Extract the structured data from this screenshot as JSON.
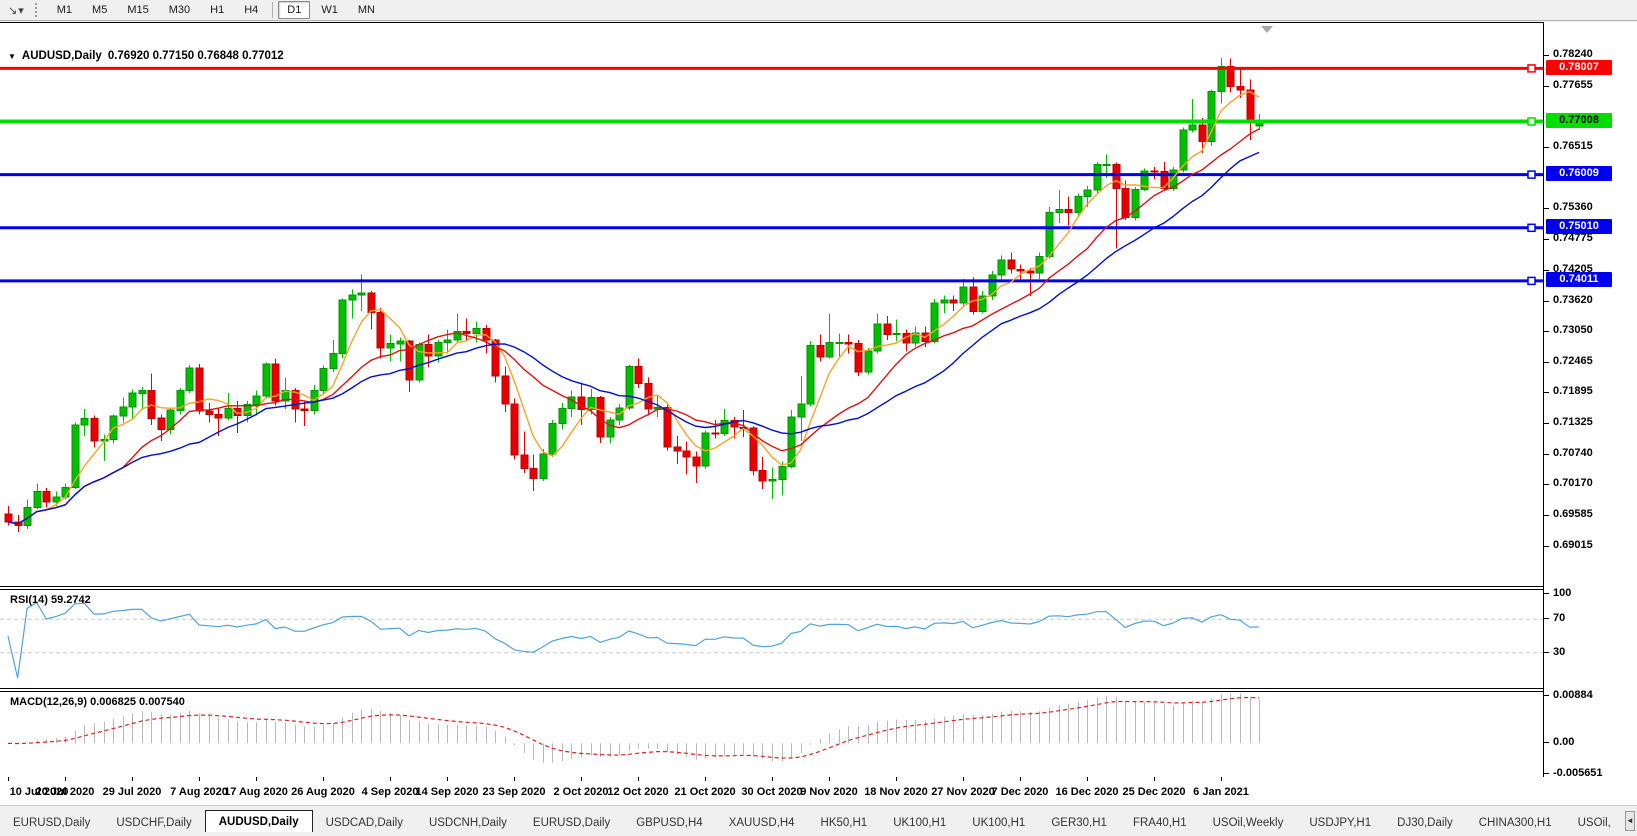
{
  "icons": {
    "toolbar_arrow": "↘",
    "dropdown_caret": "▾",
    "symbol_marker": "▼",
    "shift_marker": "chart-shift-triangle",
    "tab_scroll_left": "◄",
    "tab_scroll_right": "►"
  },
  "toolbar": {
    "timeframes": [
      "M1",
      "M5",
      "M15",
      "M30",
      "H1",
      "H4",
      "D1",
      "W1",
      "MN"
    ],
    "active_timeframe": "D1"
  },
  "title": {
    "symbol": "AUDUSD,Daily",
    "ohlc": "0.76920 0.77150 0.76848 0.77012"
  },
  "tabs": {
    "items": [
      "EURUSD,Daily",
      "USDCHF,Daily",
      "AUDUSD,Daily",
      "USDCAD,Daily",
      "USDCNH,Daily",
      "EURUSD,Daily",
      "GBPUSD,H4",
      "XAUUSD,H4",
      "HK50,H1",
      "UK100,H1",
      "UK100,H1",
      "GER30,H1",
      "FRA40,H1",
      "USOil,Weekly",
      "USDJPY,H1",
      "DJ30,Daily",
      "CHINA300,H1",
      "USOil,"
    ],
    "active_index": 2
  },
  "chart_data": {
    "type": "candlestick",
    "symbol": "AUDUSD",
    "period": "Daily",
    "ohlc_line": {
      "open": 0.7692,
      "high": 0.7715,
      "low": 0.76848,
      "close": 0.77012
    },
    "ylim": [
      0.682756,
      0.7886
    ],
    "y_ticks": [
      "0.78240",
      "0.77655",
      "0.76515",
      "0.75360",
      "0.74775",
      "0.74205",
      "0.73620",
      "0.73050",
      "0.72465",
      "0.71895",
      "0.71325",
      "0.70740",
      "0.70170",
      "0.69585",
      "0.69015"
    ],
    "x_ticks": [
      {
        "label": "10 Jul 2020",
        "bar": 0
      },
      {
        "label": "20 Jul 2020",
        "bar": 6
      },
      {
        "label": "29 Jul 2020",
        "bar": 13
      },
      {
        "label": "7 Aug 2020",
        "bar": 20
      },
      {
        "label": "17 Aug 2020",
        "bar": 26
      },
      {
        "label": "26 Aug 2020",
        "bar": 33
      },
      {
        "label": "4 Sep 2020",
        "bar": 40
      },
      {
        "label": "14 Sep 2020",
        "bar": 46
      },
      {
        "label": "23 Sep 2020",
        "bar": 53
      },
      {
        "label": "2 Oct 2020",
        "bar": 60
      },
      {
        "label": "12 Oct 2020",
        "bar": 66
      },
      {
        "label": "21 Oct 2020",
        "bar": 73
      },
      {
        "label": "30 Oct 2020",
        "bar": 80
      },
      {
        "label": "9 Nov 2020",
        "bar": 86
      },
      {
        "label": "18 Nov 2020",
        "bar": 93
      },
      {
        "label": "27 Nov 2020",
        "bar": 100
      },
      {
        "label": "7 Dec 2020",
        "bar": 106
      },
      {
        "label": "16 Dec 2020",
        "bar": 113
      },
      {
        "label": "25 Dec 2020",
        "bar": 120
      },
      {
        "label": "6 Jan 2021",
        "bar": 127
      }
    ],
    "hlines": [
      {
        "price": 0.78007,
        "label": "0.78007",
        "color": "#FF0000",
        "text_color": "#FFFFFF",
        "width": 3
      },
      {
        "price": 0.77008,
        "label": "0.77008",
        "color": "#00DD00",
        "text_color": "#000000",
        "width": 4
      },
      {
        "price": 0.76009,
        "label": "0.76009",
        "color": "#0000F0",
        "text_color": "#FFFFFF",
        "width": 3
      },
      {
        "price": 0.7501,
        "label": "0.75010",
        "color": "#0000F0",
        "text_color": "#FFFFFF",
        "width": 3
      },
      {
        "price": 0.74011,
        "label": "0.74011",
        "color": "#0000F0",
        "text_color": "#FFFFFF",
        "width": 3
      }
    ],
    "moving_averages": [
      {
        "type": "sma",
        "period": 5,
        "color": "#F7A427"
      },
      {
        "type": "sma",
        "period": 13,
        "color": "#DC1414"
      },
      {
        "type": "sma",
        "period": 21,
        "color": "#0010C8"
      }
    ],
    "colors": {
      "up": "#00BE00",
      "up_border": "#009600",
      "down": "#E80000",
      "down_border": "#C00000",
      "background": "#FFFFFF"
    },
    "candles": [
      [
        0.6963,
        0.6978,
        0.6941,
        0.6948
      ],
      [
        0.6948,
        0.6961,
        0.6929,
        0.6941
      ],
      [
        0.6941,
        0.699,
        0.6935,
        0.6975
      ],
      [
        0.6975,
        0.702,
        0.6972,
        0.7005
      ],
      [
        0.7005,
        0.7012,
        0.6975,
        0.6985
      ],
      [
        0.6985,
        0.7005,
        0.6978,
        0.6995
      ],
      [
        0.6995,
        0.702,
        0.699,
        0.7013
      ],
      [
        0.7013,
        0.7135,
        0.701,
        0.713
      ],
      [
        0.713,
        0.716,
        0.711,
        0.7142
      ],
      [
        0.7142,
        0.7148,
        0.7088,
        0.71
      ],
      [
        0.71,
        0.7112,
        0.7063,
        0.7103
      ],
      [
        0.7103,
        0.715,
        0.7095,
        0.7147
      ],
      [
        0.7147,
        0.7182,
        0.7135,
        0.7164
      ],
      [
        0.7164,
        0.7197,
        0.7142,
        0.719
      ],
      [
        0.719,
        0.7202,
        0.7158,
        0.7195
      ],
      [
        0.7195,
        0.7227,
        0.713,
        0.7143
      ],
      [
        0.7143,
        0.715,
        0.71,
        0.7122
      ],
      [
        0.7122,
        0.716,
        0.7112,
        0.7158
      ],
      [
        0.7158,
        0.72,
        0.715,
        0.7195
      ],
      [
        0.7195,
        0.7243,
        0.719,
        0.7237
      ],
      [
        0.7237,
        0.7245,
        0.715,
        0.7157
      ],
      [
        0.7157,
        0.7172,
        0.7135,
        0.715
      ],
      [
        0.715,
        0.7162,
        0.711,
        0.7143
      ],
      [
        0.7143,
        0.719,
        0.714,
        0.7161
      ],
      [
        0.7161,
        0.7175,
        0.7115,
        0.7148
      ],
      [
        0.7148,
        0.7175,
        0.7135,
        0.7169
      ],
      [
        0.7169,
        0.7195,
        0.7148,
        0.7185
      ],
      [
        0.7185,
        0.7248,
        0.718,
        0.7245
      ],
      [
        0.7245,
        0.7255,
        0.7167,
        0.7175
      ],
      [
        0.7175,
        0.722,
        0.716,
        0.7195
      ],
      [
        0.7195,
        0.72,
        0.7135,
        0.716
      ],
      [
        0.716,
        0.7175,
        0.7128,
        0.7158
      ],
      [
        0.7158,
        0.7205,
        0.715,
        0.7195
      ],
      [
        0.7195,
        0.7242,
        0.719,
        0.7236
      ],
      [
        0.7236,
        0.729,
        0.723,
        0.7265
      ],
      [
        0.7265,
        0.7368,
        0.7255,
        0.7365
      ],
      [
        0.7365,
        0.7385,
        0.733,
        0.7375
      ],
      [
        0.7375,
        0.7413,
        0.7345,
        0.7378
      ],
      [
        0.7378,
        0.7382,
        0.731,
        0.7342
      ],
      [
        0.7342,
        0.735,
        0.7255,
        0.7275
      ],
      [
        0.7275,
        0.73,
        0.725,
        0.7283
      ],
      [
        0.7283,
        0.7295,
        0.725,
        0.7288
      ],
      [
        0.7288,
        0.729,
        0.7192,
        0.7215
      ],
      [
        0.7215,
        0.7285,
        0.721,
        0.7282
      ],
      [
        0.7282,
        0.73,
        0.7238,
        0.726
      ],
      [
        0.726,
        0.729,
        0.7248,
        0.7285
      ],
      [
        0.7285,
        0.731,
        0.7265,
        0.729
      ],
      [
        0.729,
        0.734,
        0.7285,
        0.7306
      ],
      [
        0.7306,
        0.733,
        0.729,
        0.7302
      ],
      [
        0.7302,
        0.7325,
        0.7285,
        0.7312
      ],
      [
        0.7312,
        0.7318,
        0.7265,
        0.729
      ],
      [
        0.729,
        0.7292,
        0.721,
        0.7222
      ],
      [
        0.7222,
        0.724,
        0.7155,
        0.717
      ],
      [
        0.717,
        0.718,
        0.7065,
        0.7074
      ],
      [
        0.7074,
        0.7118,
        0.704,
        0.7048
      ],
      [
        0.7048,
        0.7075,
        0.7006,
        0.703
      ],
      [
        0.703,
        0.7085,
        0.7025,
        0.7076
      ],
      [
        0.7076,
        0.714,
        0.707,
        0.7133
      ],
      [
        0.7133,
        0.7172,
        0.7122,
        0.7161
      ],
      [
        0.7161,
        0.7195,
        0.7145,
        0.7183
      ],
      [
        0.7183,
        0.721,
        0.713,
        0.7159
      ],
      [
        0.7159,
        0.7198,
        0.715,
        0.7182
      ],
      [
        0.7182,
        0.7185,
        0.7096,
        0.7108
      ],
      [
        0.7108,
        0.7145,
        0.7095,
        0.714
      ],
      [
        0.714,
        0.717,
        0.713,
        0.7162
      ],
      [
        0.7162,
        0.7243,
        0.7158,
        0.724
      ],
      [
        0.724,
        0.7255,
        0.72,
        0.7208
      ],
      [
        0.7208,
        0.722,
        0.7148,
        0.716
      ],
      [
        0.716,
        0.7185,
        0.7145,
        0.7163
      ],
      [
        0.7163,
        0.717,
        0.7082,
        0.7089
      ],
      [
        0.7089,
        0.711,
        0.7057,
        0.7081
      ],
      [
        0.7081,
        0.7099,
        0.7037,
        0.707
      ],
      [
        0.707,
        0.708,
        0.7021,
        0.7053
      ],
      [
        0.7053,
        0.712,
        0.7048,
        0.7115
      ],
      [
        0.7115,
        0.714,
        0.7105,
        0.7114
      ],
      [
        0.7114,
        0.716,
        0.711,
        0.7139
      ],
      [
        0.7139,
        0.7145,
        0.7105,
        0.7126
      ],
      [
        0.7126,
        0.7158,
        0.7108,
        0.7125
      ],
      [
        0.7125,
        0.7128,
        0.7035,
        0.7045
      ],
      [
        0.7045,
        0.707,
        0.701,
        0.7025
      ],
      [
        0.7025,
        0.705,
        0.6991,
        0.7028
      ],
      [
        0.7028,
        0.7062,
        0.6998,
        0.7052
      ],
      [
        0.7052,
        0.7158,
        0.7048,
        0.7145
      ],
      [
        0.7145,
        0.7222,
        0.71,
        0.717
      ],
      [
        0.717,
        0.7288,
        0.7165,
        0.728
      ],
      [
        0.728,
        0.73,
        0.725,
        0.7258
      ],
      [
        0.7258,
        0.734,
        0.7255,
        0.7285
      ],
      [
        0.7285,
        0.7302,
        0.7258,
        0.7285
      ],
      [
        0.7285,
        0.73,
        0.7265,
        0.7283
      ],
      [
        0.7283,
        0.729,
        0.7222,
        0.723
      ],
      [
        0.723,
        0.7275,
        0.7225,
        0.7269
      ],
      [
        0.7269,
        0.734,
        0.7265,
        0.732
      ],
      [
        0.732,
        0.7335,
        0.729,
        0.73
      ],
      [
        0.73,
        0.7329,
        0.7288,
        0.7302
      ],
      [
        0.7302,
        0.731,
        0.7268,
        0.7284
      ],
      [
        0.7284,
        0.7315,
        0.7278,
        0.7303
      ],
      [
        0.7303,
        0.7315,
        0.7277,
        0.7287
      ],
      [
        0.7287,
        0.7367,
        0.7283,
        0.736
      ],
      [
        0.736,
        0.7374,
        0.734,
        0.7365
      ],
      [
        0.7365,
        0.7374,
        0.7345,
        0.736
      ],
      [
        0.736,
        0.7405,
        0.7355,
        0.739
      ],
      [
        0.739,
        0.7408,
        0.7338,
        0.7344
      ],
      [
        0.7344,
        0.7382,
        0.734,
        0.7373
      ],
      [
        0.7373,
        0.742,
        0.7365,
        0.7412
      ],
      [
        0.7412,
        0.7449,
        0.74,
        0.744
      ],
      [
        0.744,
        0.7455,
        0.7415,
        0.7423
      ],
      [
        0.7423,
        0.7432,
        0.74,
        0.742
      ],
      [
        0.742,
        0.7425,
        0.7373,
        0.7416
      ],
      [
        0.7416,
        0.7455,
        0.7405,
        0.7447
      ],
      [
        0.7447,
        0.754,
        0.7443,
        0.753
      ],
      [
        0.753,
        0.7572,
        0.751,
        0.7535
      ],
      [
        0.7535,
        0.756,
        0.7505,
        0.753
      ],
      [
        0.753,
        0.7565,
        0.752,
        0.756
      ],
      [
        0.756,
        0.758,
        0.754,
        0.7572
      ],
      [
        0.7572,
        0.7625,
        0.7565,
        0.762
      ],
      [
        0.762,
        0.7639,
        0.7595,
        0.762
      ],
      [
        0.762,
        0.7624,
        0.7462,
        0.7575
      ],
      [
        0.7575,
        0.759,
        0.7516,
        0.752
      ],
      [
        0.752,
        0.7578,
        0.7515,
        0.7573
      ],
      [
        0.7573,
        0.7612,
        0.757,
        0.7608
      ],
      [
        0.7608,
        0.7615,
        0.7592,
        0.7607
      ],
      [
        0.7607,
        0.7625,
        0.757,
        0.7575
      ],
      [
        0.7575,
        0.7615,
        0.757,
        0.761
      ],
      [
        0.761,
        0.769,
        0.7605,
        0.7685
      ],
      [
        0.7685,
        0.7743,
        0.768,
        0.7694
      ],
      [
        0.7694,
        0.7707,
        0.7642,
        0.7663
      ],
      [
        0.7663,
        0.776,
        0.7655,
        0.7757
      ],
      [
        0.7757,
        0.782,
        0.7735,
        0.7804
      ],
      [
        0.7804,
        0.7819,
        0.7755,
        0.7767
      ],
      [
        0.7767,
        0.78,
        0.7745,
        0.776
      ],
      [
        0.776,
        0.778,
        0.7666,
        0.7698
      ],
      [
        0.7692,
        0.7715,
        0.76848,
        0.77012
      ]
    ],
    "indicators": {
      "rsi": {
        "label": "RSI(14) 59.2742",
        "period": 14,
        "current": 59.2742,
        "levels": [
          70,
          30
        ],
        "level_color": "#C8C8C8",
        "color": "#4FA3DC",
        "ylim": [
          -12,
          105
        ],
        "y_ticks": [
          {
            "label": "100",
            "value": 100
          },
          {
            "label": "70",
            "value": 70
          },
          {
            "label": "30",
            "value": 30
          }
        ]
      },
      "macd": {
        "label": "MACD(12,26,9) 0.006825 0.007540",
        "fast": 12,
        "slow": 26,
        "signal": 9,
        "current_macd": 0.006825,
        "current_signal": 0.00754,
        "histogram_color": "#B8B8B8",
        "signal_color": "#E02020",
        "ylim": [
          -0.0062,
          0.0095
        ],
        "y_ticks": [
          {
            "label": "0.00884",
            "value": 0.00884
          },
          {
            "label": "0.00",
            "value": 0
          },
          {
            "label": "-0.005651",
            "value": -0.005651
          }
        ]
      }
    }
  }
}
